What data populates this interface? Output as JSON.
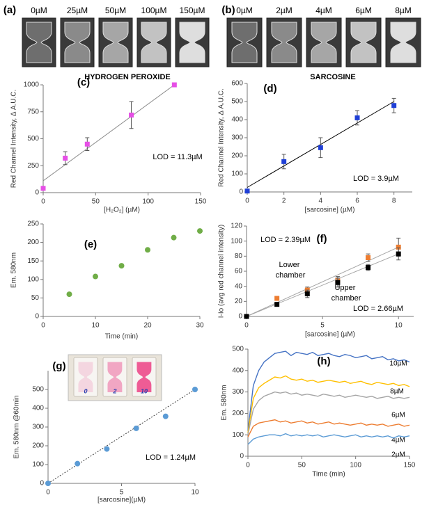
{
  "image_strips": [
    {
      "label": "(a)",
      "captions": [
        "0µM",
        "25µM",
        "50µM",
        "100µM",
        "150µM"
      ]
    },
    {
      "label": "(b)",
      "captions": [
        "0µM",
        "2µM",
        "4µM",
        "6µM",
        "8µM"
      ]
    }
  ],
  "chart_data": [
    {
      "type": "scatter",
      "panel_label": "(c)",
      "title": "HYDROGEN PEROXIDE",
      "x_label": "[H₂O₂] (µM)",
      "y_label": "Red Channel Intensity, Δ A.U.C.",
      "xlim": [
        0,
        150
      ],
      "xticks": [
        0,
        50,
        100,
        150
      ],
      "ylim": [
        0,
        1000
      ],
      "yticks": [
        0,
        250,
        500,
        750,
        1000
      ],
      "series": [
        {
          "color": "#e64fe6",
          "marker": "square",
          "x": [
            0,
            21,
            42,
            84,
            125
          ],
          "values": [
            40,
            320,
            450,
            720,
            1000
          ],
          "errors": [
            null,
            60,
            60,
            125,
            null
          ],
          "fit": {
            "color": "#8c8c8c",
            "x": [
              0,
              125
            ],
            "y": [
              110,
              1000
            ]
          }
        }
      ],
      "annotations": [
        "LOD = 11.3µM"
      ]
    },
    {
      "type": "scatter",
      "panel_label": "(d)",
      "title": "SARCOSINE",
      "x_label": "[sarcosine] (µM)",
      "y_label": "Red Channel Intensity, Δ A.U.C.",
      "xlim": [
        0,
        9
      ],
      "xticks": [
        0,
        2,
        4,
        6,
        8
      ],
      "ylim": [
        0,
        600
      ],
      "yticks": [
        0,
        100,
        200,
        300,
        400,
        500,
        600
      ],
      "series": [
        {
          "color": "#1f3fd6",
          "marker": "square",
          "x": [
            0,
            2,
            4,
            6,
            8
          ],
          "values": [
            5,
            168,
            245,
            410,
            478
          ],
          "errors": [
            null,
            40,
            55,
            40,
            40
          ],
          "fit": {
            "color": "#000000",
            "x": [
              0,
              8
            ],
            "y": [
              25,
              500
            ]
          }
        }
      ],
      "annotations": [
        "LOD = 3.9µM"
      ]
    },
    {
      "type": "scatter",
      "panel_label": "(e)",
      "x_label": "Time (min)",
      "y_label": "Em. 580nm",
      "xlim": [
        0,
        30
      ],
      "xticks": [
        0,
        10,
        20,
        30
      ],
      "ylim": [
        0,
        250
      ],
      "yticks": [
        0,
        50,
        100,
        150,
        200,
        250
      ],
      "series": [
        {
          "color": "#70ad47",
          "marker": "circle",
          "x": [
            5,
            10,
            15,
            20,
            25,
            30
          ],
          "values": [
            60,
            108,
            137,
            180,
            213,
            231
          ]
        }
      ]
    },
    {
      "type": "scatter",
      "panel_label": "(f)",
      "x_label": "[sarcosine] (µM)",
      "y_label": "I-Io (avg red channel intensity)",
      "xlim": [
        0,
        11
      ],
      "xticks": [
        0,
        5,
        10
      ],
      "ylim": [
        0,
        120
      ],
      "yticks": [
        0,
        20,
        40,
        60,
        80,
        100,
        120
      ],
      "series": [
        {
          "name": "Lower chamber",
          "color": "#ed7d31",
          "marker": "square",
          "x": [
            0,
            2,
            4,
            6,
            8,
            10
          ],
          "values": [
            0,
            24,
            35,
            48,
            78,
            92
          ],
          "errors": [
            null,
            null,
            4,
            5,
            5,
            12
          ],
          "fit": {
            "color": "#a6a6a6",
            "x": [
              0,
              10
            ],
            "y": [
              0,
              92
            ]
          }
        },
        {
          "name": "Upper chamber",
          "color": "#000000",
          "marker": "square",
          "x": [
            0,
            2,
            4,
            6,
            8,
            10
          ],
          "values": [
            0,
            16,
            30,
            45,
            65,
            83
          ],
          "errors": [
            null,
            null,
            5,
            6,
            4,
            8
          ],
          "fit": {
            "color": "#a6a6a6",
            "x": [
              0,
              10
            ],
            "y": [
              0,
              83
            ]
          }
        }
      ],
      "annotations": [
        "LOD = 2.39µM",
        "LOD = 2.66µM"
      ]
    },
    {
      "type": "scatter",
      "panel_label": "(g)",
      "x_label": "[sarcosine](µM)",
      "y_label": "Em. 580nm @60min",
      "xlim": [
        0,
        10
      ],
      "xticks": [
        0,
        5,
        10
      ],
      "ylim": [
        0,
        600
      ],
      "yticks": [
        0,
        100,
        200,
        300,
        400,
        500
      ],
      "series": [
        {
          "color": "#5b9bd5",
          "marker": "circle",
          "x": [
            0,
            2,
            4,
            6,
            8,
            10
          ],
          "values": [
            0,
            105,
            183,
            293,
            357,
            500
          ],
          "fit": {
            "color": "#404040",
            "dotted": true,
            "x": [
              0,
              10
            ],
            "y": [
              0,
              500
            ]
          }
        }
      ],
      "inset_labels": [
        "0",
        "2",
        "10"
      ],
      "annotations": [
        "LOD = 1.24µM"
      ]
    },
    {
      "type": "line",
      "panel_label": "(h)",
      "x_label": "Time (min)",
      "y_label": "Em. 580nm",
      "xlim": [
        0,
        150
      ],
      "xticks": [
        0,
        50,
        100,
        150
      ],
      "ylim": [
        0,
        500
      ],
      "yticks": [
        0,
        100,
        200,
        300,
        400,
        500
      ],
      "x": [
        0,
        5,
        10,
        15,
        20,
        25,
        30,
        35,
        40,
        45,
        50,
        55,
        60,
        65,
        70,
        75,
        80,
        85,
        90,
        95,
        100,
        105,
        110,
        115,
        120,
        125,
        130,
        135,
        140,
        145,
        150
      ],
      "series": [
        {
          "name": "10µM",
          "color": "#4472c4",
          "values": [
            120,
            330,
            400,
            440,
            460,
            480,
            485,
            490,
            470,
            485,
            480,
            475,
            485,
            470,
            475,
            480,
            470,
            465,
            475,
            470,
            460,
            465,
            470,
            455,
            460,
            465,
            450,
            455,
            445,
            450,
            440
          ]
        },
        {
          "name": "8µM",
          "color": "#ffc000",
          "values": [
            110,
            270,
            320,
            340,
            355,
            370,
            365,
            375,
            360,
            355,
            360,
            350,
            355,
            345,
            350,
            355,
            350,
            345,
            350,
            340,
            345,
            350,
            340,
            335,
            345,
            340,
            335,
            340,
            330,
            335,
            325
          ]
        },
        {
          "name": "6µM",
          "color": "#a5a5a5",
          "values": [
            100,
            220,
            260,
            280,
            290,
            300,
            295,
            300,
            290,
            295,
            285,
            290,
            285,
            280,
            290,
            285,
            280,
            285,
            275,
            280,
            285,
            280,
            275,
            280,
            270,
            275,
            280,
            270,
            275,
            270,
            275
          ]
        },
        {
          "name": "4µM",
          "color": "#ed7d31",
          "values": [
            90,
            140,
            155,
            160,
            165,
            170,
            160,
            165,
            155,
            160,
            165,
            155,
            160,
            150,
            155,
            160,
            150,
            155,
            150,
            145,
            150,
            155,
            145,
            150,
            145,
            150,
            140,
            145,
            150,
            140,
            145
          ]
        },
        {
          "name": "2µM",
          "color": "#5b9bd5",
          "values": [
            55,
            80,
            90,
            95,
            100,
            100,
            95,
            105,
            95,
            100,
            95,
            100,
            95,
            100,
            90,
            95,
            100,
            95,
            90,
            95,
            100,
            90,
            95,
            90,
            95,
            90,
            95,
            85,
            95,
            90,
            95
          ]
        }
      ]
    }
  ]
}
